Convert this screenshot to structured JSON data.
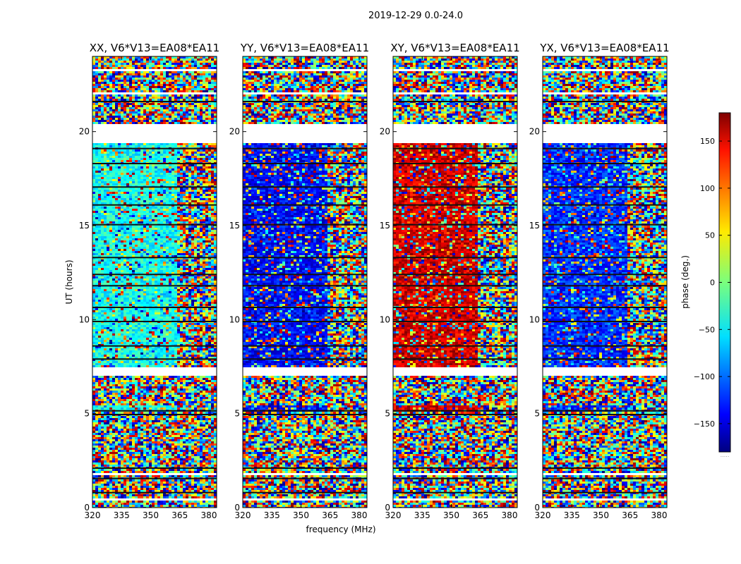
{
  "suptitle": "2019-12-29 0.0-24.0",
  "chart_data": {
    "type": "heatmap",
    "panels": [
      {
        "name": "XX",
        "title": "XX, V6*V13=EA08*EA11"
      },
      {
        "name": "YY",
        "title": "YY, V6*V13=EA08*EA11"
      },
      {
        "name": "XY",
        "title": "XY, V6*V13=EA08*EA11"
      },
      {
        "name": "YX",
        "title": "YX, V6*V13=EA08*EA11"
      }
    ],
    "xlabel": "frequency (MHz)",
    "ylabel": "UT (hours)",
    "xlim": [
      320,
      384
    ],
    "ylim": [
      0,
      24
    ],
    "xticks": [
      320,
      335,
      350,
      365,
      380
    ],
    "xtick_labels": [
      "320",
      "335",
      "350",
      "365",
      "380"
    ],
    "yticks": [
      0,
      5,
      10,
      15,
      20
    ],
    "ytick_labels": [
      "0",
      "5",
      "10",
      "15",
      "20"
    ],
    "colorbar": {
      "label": "phase (deg.)",
      "colormap": "jet",
      "range": [
        -180,
        180
      ],
      "ticks": [
        150,
        100,
        50,
        0,
        -50,
        -100,
        -150
      ],
      "tick_labels": [
        "150",
        "100",
        "50",
        "0",
        "−50",
        "−100",
        "−150"
      ],
      "footer_text": "....."
    },
    "gap_intervals_hours": [
      [
        19.4,
        20.5
      ],
      [
        7.1,
        7.5
      ],
      [
        0.45,
        0.6
      ],
      [
        1.75,
        1.9
      ],
      [
        23.25,
        23.4
      ],
      [
        22.0,
        22.1
      ]
    ],
    "dark_band_rows_hours": [
      0.8,
      1.55,
      2.1,
      4.95,
      5.15,
      7.9,
      8.6,
      9.9,
      10.65,
      11.8,
      12.4,
      13.3,
      15.05,
      16.1,
      17.05,
      18.3,
      19.1,
      21.6
    ],
    "flagged_channel_boundary_mhz": 363.5,
    "panel_mean_phase_deg": {
      "XX": -40,
      "YY": -135,
      "XY": 150,
      "YX": -120
    }
  }
}
